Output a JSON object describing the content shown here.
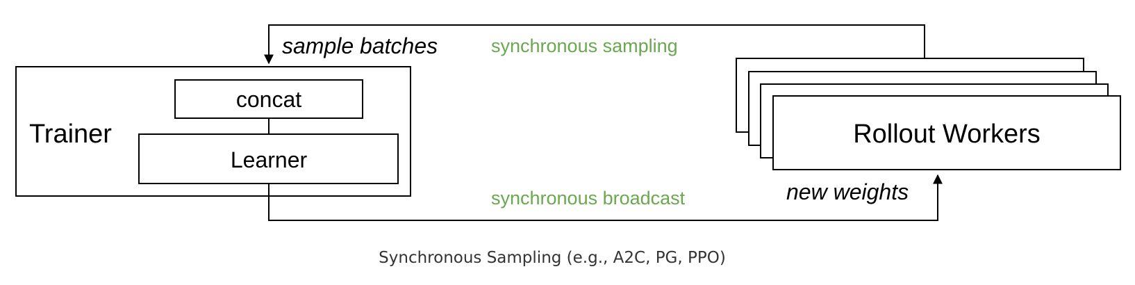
{
  "trainer": {
    "title": "Trainer",
    "concat": "concat",
    "learner": "Learner"
  },
  "workers": {
    "title": "Rollout Workers"
  },
  "edges": {
    "sample_batches": "sample batches",
    "sync_sampling": "synchronous sampling",
    "sync_broadcast": "synchronous broadcast",
    "new_weights": "new weights"
  },
  "caption": "Synchronous Sampling (e.g., A2C, PG, PPO)",
  "colors": {
    "accent": "#6aa84f",
    "stroke": "#000000",
    "caption": "#333333"
  }
}
